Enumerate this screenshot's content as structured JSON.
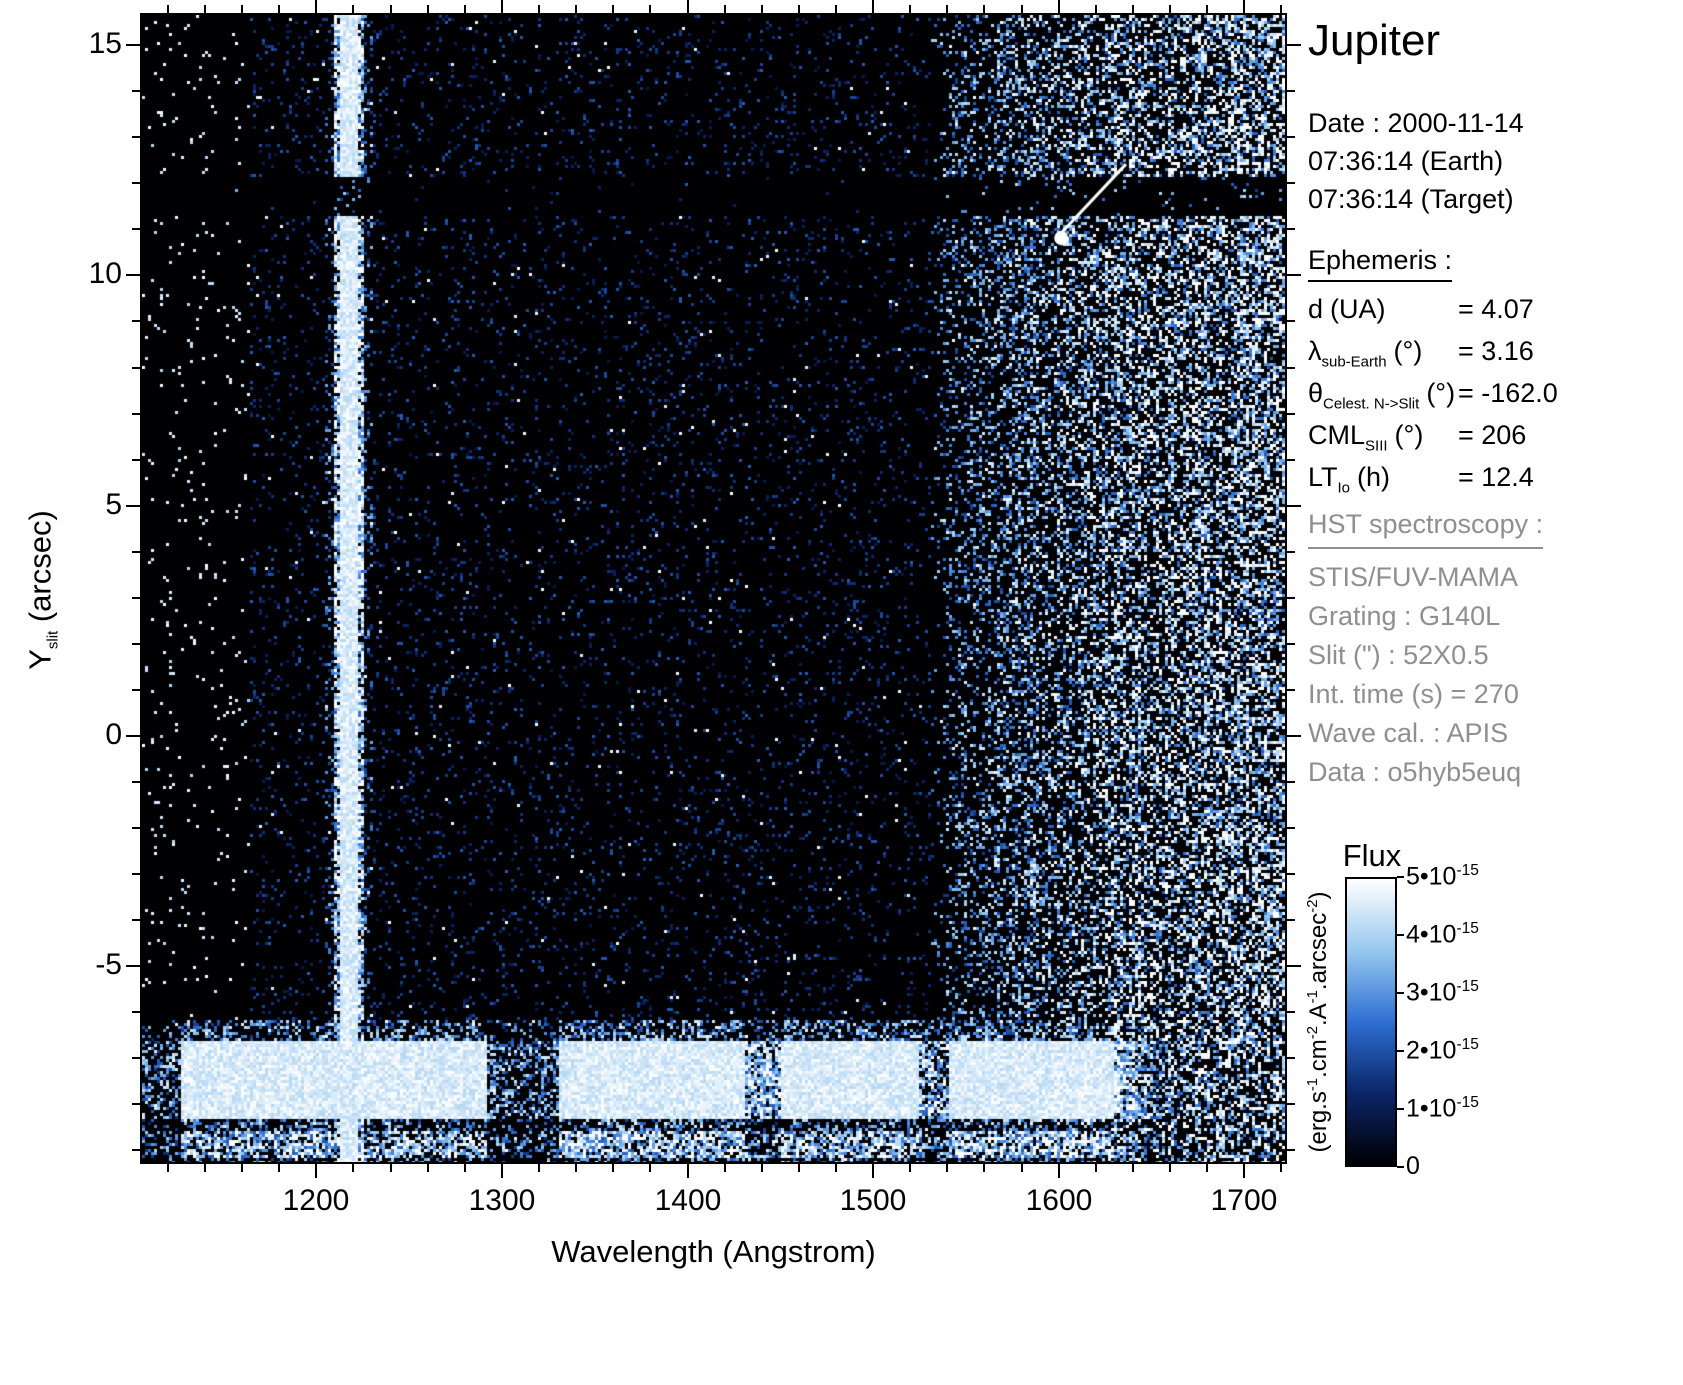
{
  "title": "Jupiter",
  "observation": {
    "date_line": "Date : 2000-11-14",
    "earth_time": "07:36:14 (Earth)",
    "target_time": "07:36:14 (Target)"
  },
  "ephemeris": {
    "heading": "Ephemeris :",
    "rows": [
      {
        "sym": "d",
        "sub": "",
        "unit": "(UA)",
        "val": "= 4.07"
      },
      {
        "sym": "λ",
        "sub": "sub-Earth",
        "unit": "(°)",
        "val": "= 3.16"
      },
      {
        "sym": "θ",
        "sub": "Celest. N->Slit",
        "unit": "(°)",
        "val": "= -162.0"
      },
      {
        "sym": "CML",
        "sub": "SIII",
        "unit": "(°)",
        "val": "= 206"
      },
      {
        "sym": "LT",
        "sub": "Io",
        "unit": "(h)",
        "val": "= 12.4"
      }
    ]
  },
  "hst": {
    "heading": "HST spectroscopy :",
    "lines": [
      "STIS/FUV-MAMA",
      "Grating : G140L",
      "Slit (\") : 52X0.5",
      "Int. time (s) = 270",
      "Wave cal. : APIS",
      "Data : o5hyb5euq"
    ]
  },
  "colorbar": {
    "title": "Flux",
    "unit_segments": [
      {
        "t": "(erg.s"
      },
      {
        "t": "-1",
        "sup": true
      },
      {
        "t": ".cm"
      },
      {
        "t": "-2",
        "sup": true
      },
      {
        "t": ".A"
      },
      {
        "t": "-1",
        "sup": true
      },
      {
        "t": ".arcsec"
      },
      {
        "t": "-2",
        "sup": true
      },
      {
        "t": ")"
      }
    ],
    "ticks": [
      {
        "coef": "5•10",
        "exp": "-15"
      },
      {
        "coef": "4•10",
        "exp": "-15"
      },
      {
        "coef": "3•10",
        "exp": "-15"
      },
      {
        "coef": "2•10",
        "exp": "-15"
      },
      {
        "coef": "1•10",
        "exp": "-15"
      },
      {
        "coef": "0",
        "exp": ""
      }
    ],
    "colormap": [
      "#000004",
      "#0a2568",
      "#2e6fd2",
      "#97c8ef",
      "#ffffff"
    ]
  },
  "chart_data": {
    "type": "heatmap",
    "title": "Jupiter",
    "xlabel": "Wavelength (Angstrom)",
    "ylabel": "Y_slit (arcsec)",
    "ylabel_parts": {
      "main": "Y",
      "sub": "slit",
      "unit": " (arcsec)"
    },
    "xlim": [
      1105,
      1723
    ],
    "ylim": [
      -9.3,
      15.7
    ],
    "x_major_ticks": [
      1200,
      1300,
      1400,
      1500,
      1600,
      1700
    ],
    "x_minor_step": 20,
    "y_major_ticks": [
      -5,
      0,
      5,
      10,
      15
    ],
    "y_minor_step": 1,
    "flux_min": 0,
    "flux_max": 5e-15,
    "flux_units": "erg.s-1.cm-2.A-1.arcsec-2",
    "features": {
      "lyman_alpha_line": {
        "wavelength": 1216,
        "extent_y": [
          -6.3,
          15.7
        ]
      },
      "occulting_dark_band_y": [
        11.35,
        12.2
      ],
      "disk_spectrum_band_y": [
        -9.3,
        -6.2
      ],
      "airglow_region_x": [
        1530,
        1723
      ],
      "annotation_line": {
        "x1": 1637,
        "y1": 12.45,
        "x2": 1602,
        "y2": 10.95
      }
    }
  }
}
